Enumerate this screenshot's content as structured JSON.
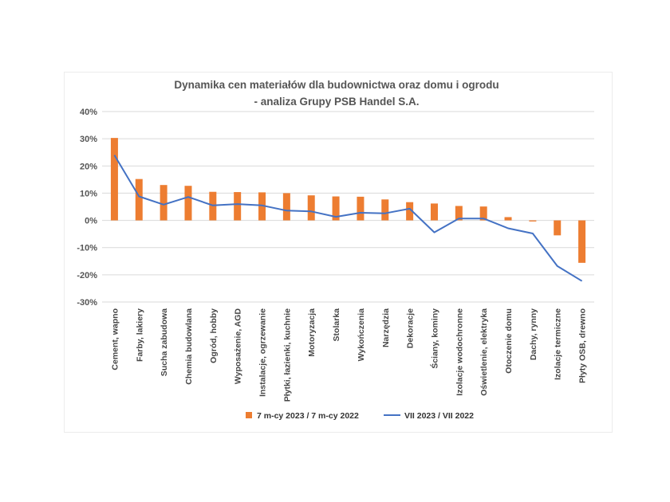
{
  "chart_data": {
    "type": "bar",
    "title": "Dynamika cen materiałów dla budownictwa oraz domu i ogrodu",
    "subtitle": "- analiza Grupy PSB Handel S.A.",
    "categories": [
      "Cement, wapno",
      "Farby, lakiery",
      "Sucha zabudowa",
      "Chemia budowlana",
      "Ogród, hobby",
      "Wyposażenie, AGD",
      "Instalacje, ogrzewanie",
      "Płytki, łazienki, kuchnie",
      "Motoryzacja",
      "Stolarka",
      "Wykończenia",
      "Narzędzia",
      "Dekoracje",
      "Ściany, kominy",
      "Izolacje wodochronne",
      "Oświetlenie, elektryka",
      "Otoczenie domu",
      "Dachy, rynny",
      "Izolacje termiczne",
      "Płyty OSB, drewno"
    ],
    "series": [
      {
        "name": "7 m-cy 2023 / 7 m-cy 2022",
        "kind": "bar",
        "color": "#ED7D31",
        "values": [
          30.3,
          15.2,
          13.0,
          12.7,
          10.5,
          10.4,
          10.3,
          10.0,
          9.2,
          8.8,
          8.7,
          7.7,
          6.7,
          6.2,
          5.3,
          5.1,
          1.2,
          -0.4,
          -5.5,
          -15.6
        ]
      },
      {
        "name": "VII 2023 / VII 2022",
        "kind": "line",
        "color": "#4472C4",
        "values": [
          24.0,
          8.8,
          5.8,
          8.6,
          5.5,
          6.0,
          5.5,
          3.6,
          3.3,
          1.3,
          2.8,
          2.6,
          4.3,
          -4.4,
          0.7,
          0.7,
          -2.9,
          -4.8,
          -16.8,
          -22.3
        ]
      }
    ],
    "yticks": [
      "40%",
      "30%",
      "20%",
      "10%",
      "0%",
      "-10%",
      "-20%",
      "-30%"
    ],
    "ylim": [
      -30,
      40
    ],
    "grid": true,
    "legend": "bottom"
  }
}
